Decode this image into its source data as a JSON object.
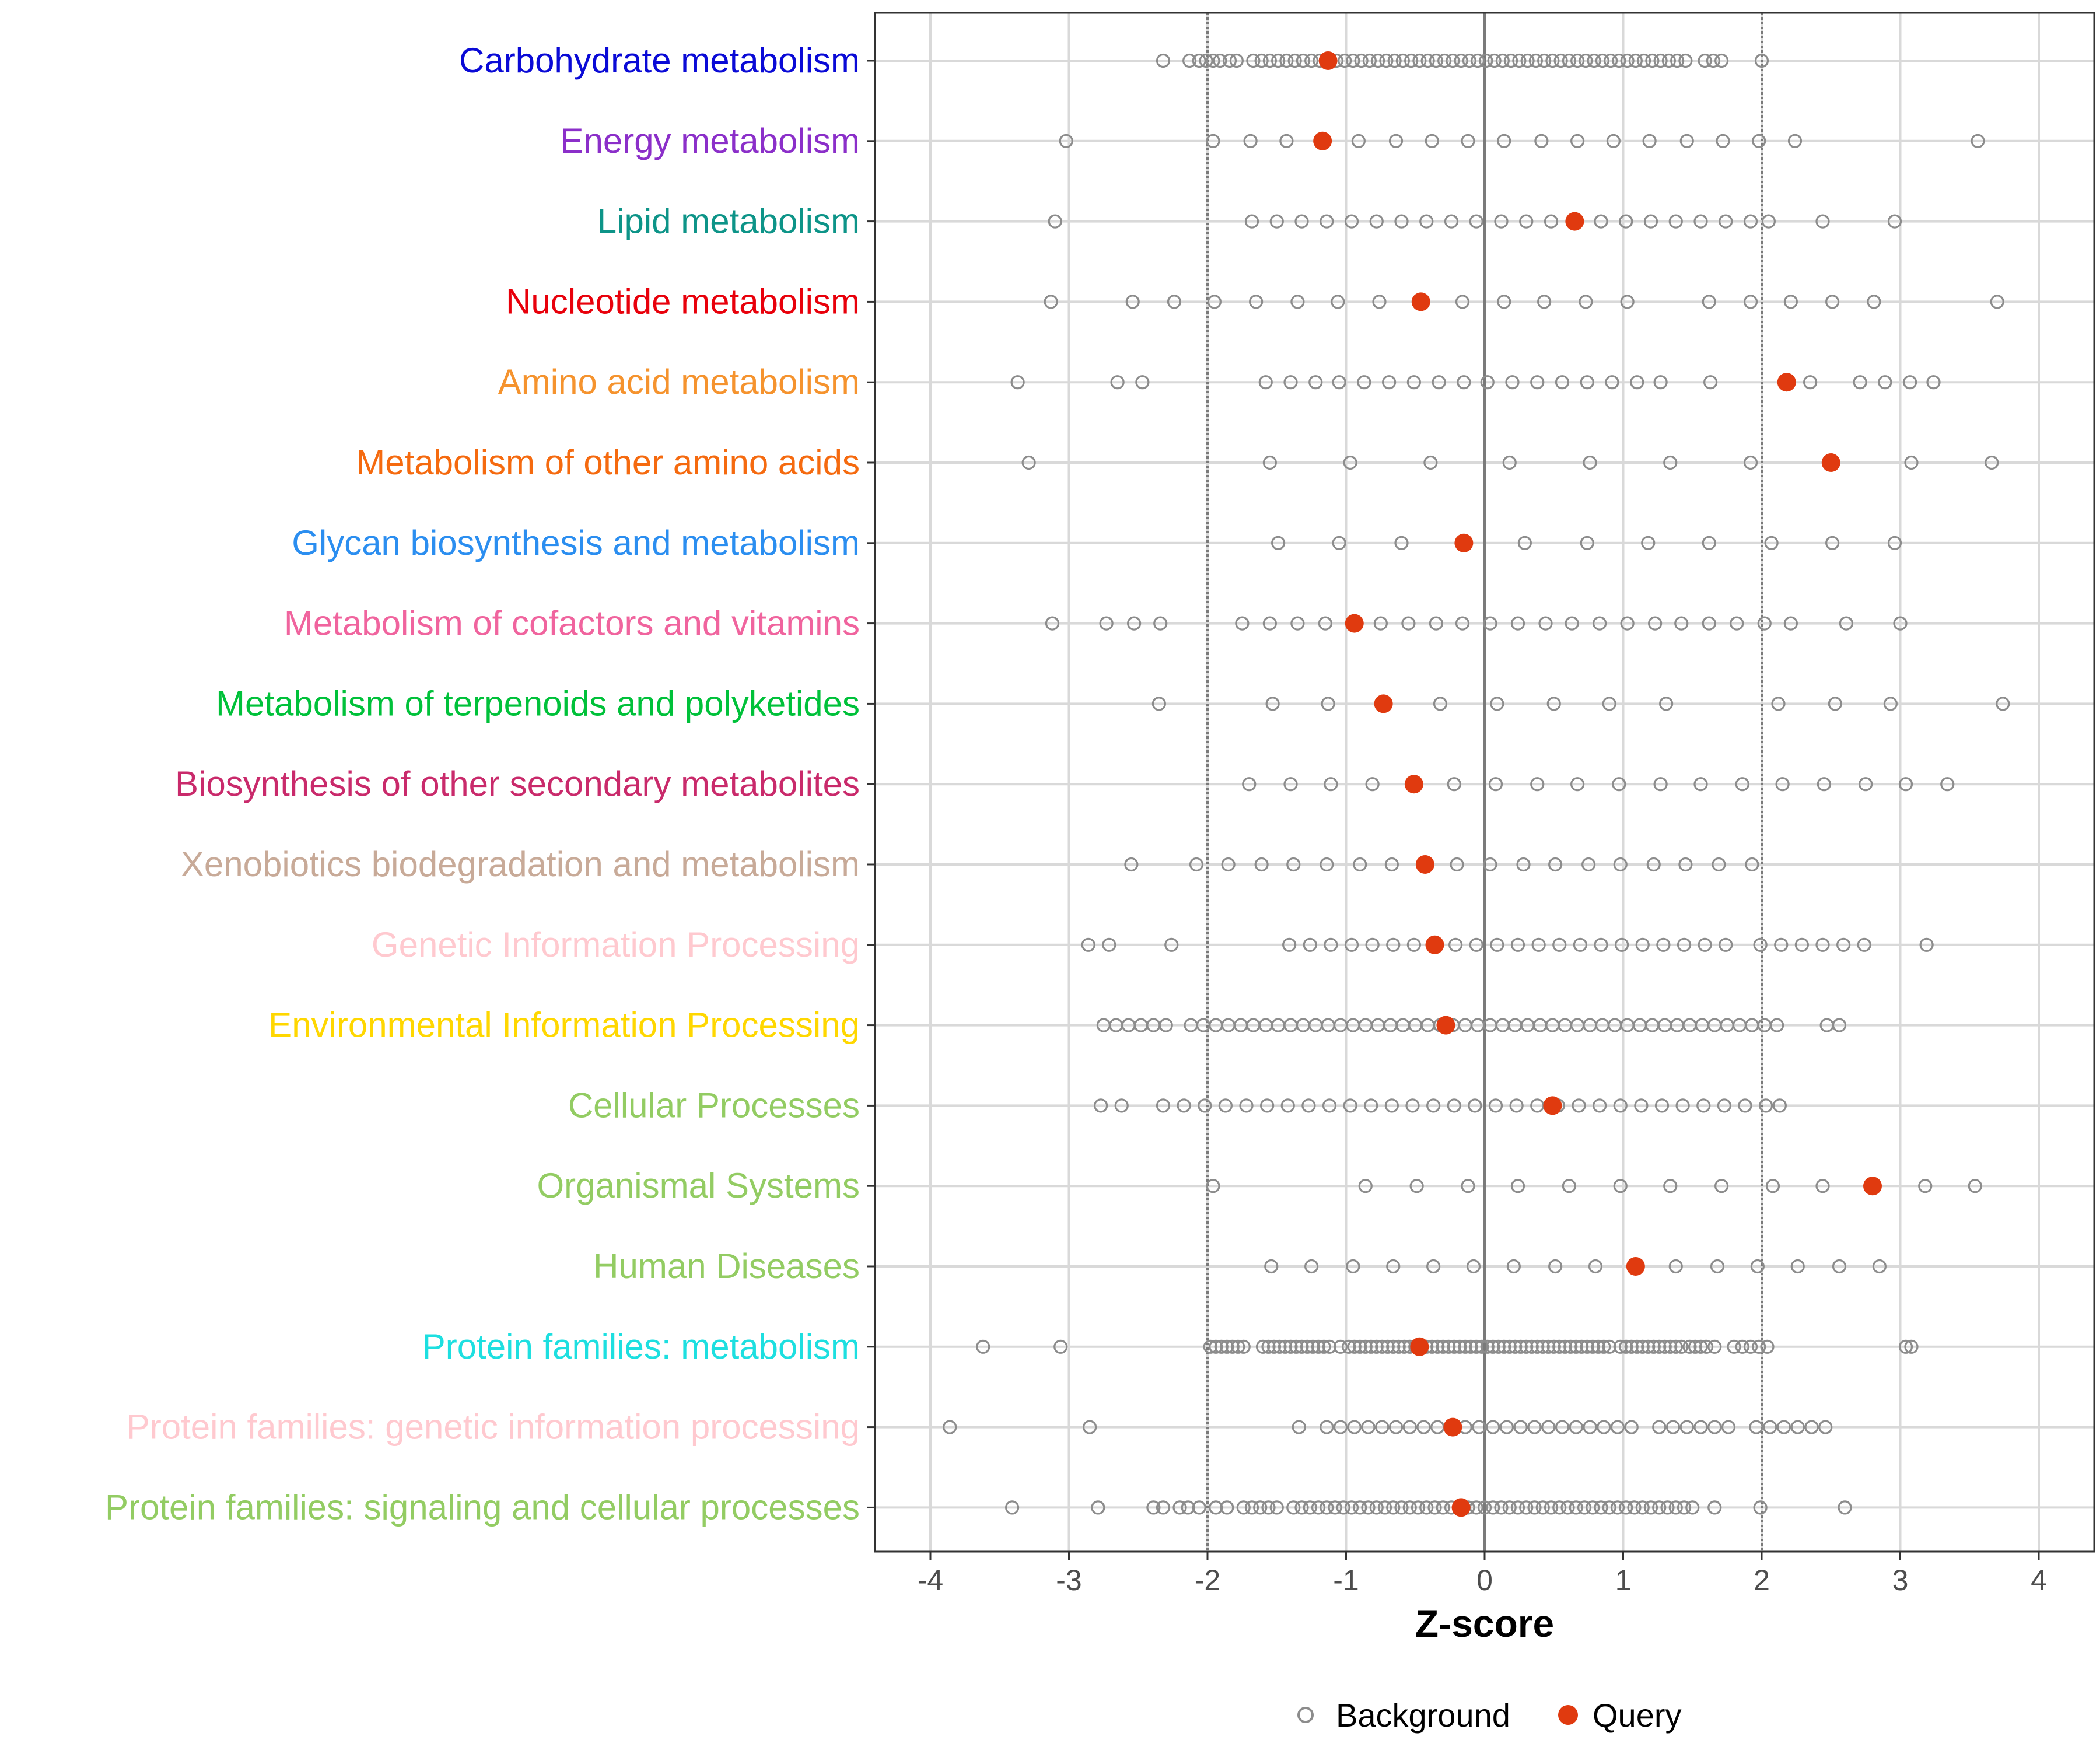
{
  "chart_data": {
    "type": "scatter",
    "title": "",
    "xlabel": "Z-score",
    "ylabel": "",
    "xlim": [
      -4.4,
      4.4
    ],
    "x_ticks": [
      "-4",
      "-3",
      "-2",
      "-1",
      "0",
      "1",
      "2",
      "3",
      "4"
    ],
    "reference_lines": {
      "dashed": [
        -2,
        2
      ],
      "solid": [
        0
      ]
    },
    "legend": {
      "placement": "bottom",
      "items": [
        {
          "name": "Background",
          "marker": "open-circle",
          "color": "#8c8c8c"
        },
        {
          "name": "Query",
          "marker": "filled-circle",
          "color": "#e03a0f"
        }
      ]
    },
    "categories": [
      {
        "name": "Carbohydrate metabolism",
        "color": "#0a0ad6",
        "query": -1.13,
        "background": [
          -2.32,
          -2.13,
          -2.06,
          -2.01,
          -1.96,
          -1.91,
          -1.84,
          -1.79,
          -1.67,
          -1.61,
          -1.55,
          -1.49,
          -1.43,
          -1.37,
          -1.31,
          -1.25,
          -1.19,
          -1.13,
          -1.07,
          -1.01,
          -0.95,
          -0.89,
          -0.83,
          -0.77,
          -0.71,
          -0.65,
          -0.59,
          -0.53,
          -0.47,
          -0.41,
          -0.35,
          -0.29,
          -0.23,
          -0.17,
          -0.11,
          -0.05,
          0.01,
          0.07,
          0.13,
          0.19,
          0.25,
          0.31,
          0.37,
          0.43,
          0.49,
          0.55,
          0.61,
          0.67,
          0.73,
          0.79,
          0.85,
          0.91,
          0.97,
          1.03,
          1.09,
          1.15,
          1.21,
          1.27,
          1.33,
          1.39,
          1.45,
          1.59,
          1.65,
          1.71,
          2.0
        ]
      },
      {
        "name": "Energy metabolism",
        "color": "#8b2fc9",
        "query": -1.17,
        "background": [
          -3.02,
          -1.96,
          -1.69,
          -1.43,
          -1.17,
          -0.91,
          -0.64,
          -0.38,
          -0.12,
          0.14,
          0.41,
          0.67,
          0.93,
          1.19,
          1.46,
          1.72,
          1.98,
          2.24,
          3.56
        ]
      },
      {
        "name": "Lipid metabolism",
        "color": "#0d9488",
        "query": 0.65,
        "background": [
          -3.1,
          -1.68,
          -1.5,
          -1.32,
          -1.14,
          -0.96,
          -0.78,
          -0.6,
          -0.42,
          -0.24,
          -0.06,
          0.12,
          0.3,
          0.48,
          0.66,
          0.84,
          1.02,
          1.2,
          1.38,
          1.56,
          1.74,
          1.92,
          2.05,
          2.44,
          2.96
        ]
      },
      {
        "name": "Nucleotide metabolism",
        "color": "#e8000b",
        "query": -0.46,
        "background": [
          -3.13,
          -2.54,
          -2.24,
          -1.95,
          -1.65,
          -1.35,
          -1.06,
          -0.76,
          -0.46,
          -0.16,
          0.14,
          0.43,
          0.73,
          1.03,
          1.62,
          1.92,
          2.21,
          2.51,
          2.81,
          3.7
        ]
      },
      {
        "name": "Amino acid metabolism",
        "color": "#f5932e",
        "query": 2.18,
        "background": [
          -3.37,
          -2.65,
          -2.47,
          -1.58,
          -1.4,
          -1.22,
          -1.05,
          -0.87,
          -0.69,
          -0.51,
          -0.33,
          -0.15,
          0.02,
          0.2,
          0.38,
          0.56,
          0.74,
          0.92,
          1.1,
          1.27,
          1.63,
          2.18,
          2.35,
          2.71,
          2.89,
          3.07,
          3.24
        ]
      },
      {
        "name": "Metabolism of other amino acids",
        "color": "#f56a0f",
        "query": 2.5,
        "background": [
          -3.29,
          -1.55,
          -0.97,
          -0.39,
          0.18,
          0.76,
          1.34,
          1.92,
          2.5,
          3.08,
          3.66
        ]
      },
      {
        "name": "Glycan biosynthesis and metabolism",
        "color": "#2b8ef0",
        "query": -0.15,
        "background": [
          -1.49,
          -1.05,
          -0.6,
          -0.15,
          0.29,
          0.74,
          1.18,
          1.62,
          2.07,
          2.51,
          2.96
        ]
      },
      {
        "name": "Metabolism of cofactors and vitamins",
        "color": "#f0649e",
        "query": -0.94,
        "background": [
          -3.12,
          -2.73,
          -2.53,
          -2.34,
          -1.75,
          -1.55,
          -1.35,
          -1.15,
          -0.94,
          -0.75,
          -0.55,
          -0.35,
          -0.16,
          0.04,
          0.24,
          0.44,
          0.63,
          0.83,
          1.03,
          1.23,
          1.42,
          1.62,
          1.82,
          2.02,
          2.21,
          2.61,
          3.0
        ]
      },
      {
        "name": "Metabolism of terpenoids and polyketides",
        "color": "#00c13a",
        "query": -0.73,
        "background": [
          -2.35,
          -1.53,
          -1.13,
          -0.73,
          -0.32,
          0.09,
          0.5,
          0.9,
          1.31,
          2.12,
          2.53,
          2.93,
          3.74
        ]
      },
      {
        "name": "Biosynthesis of other secondary metabolites",
        "color": "#c92a6b",
        "query": -0.51,
        "background": [
          -1.7,
          -1.4,
          -1.11,
          -0.81,
          -0.51,
          -0.22,
          0.08,
          0.38,
          0.67,
          0.97,
          1.27,
          1.56,
          1.86,
          2.15,
          2.45,
          2.75,
          3.04,
          3.34
        ]
      },
      {
        "name": "Xenobiotics biodegradation and metabolism",
        "color": "#c8aa98",
        "query": -0.43,
        "background": [
          -2.55,
          -2.08,
          -1.85,
          -1.61,
          -1.38,
          -1.14,
          -0.9,
          -0.67,
          -0.43,
          -0.2,
          0.04,
          0.28,
          0.51,
          0.75,
          0.98,
          1.22,
          1.45,
          1.69,
          1.93
        ]
      },
      {
        "name": "Genetic Information Processing",
        "color": "#ffc9cf",
        "query": -0.36,
        "background": [
          -2.86,
          -2.71,
          -2.26,
          -1.41,
          -1.26,
          -1.11,
          -0.96,
          -0.81,
          -0.66,
          -0.51,
          -0.36,
          -0.21,
          -0.06,
          0.09,
          0.24,
          0.39,
          0.54,
          0.69,
          0.84,
          0.99,
          1.14,
          1.29,
          1.44,
          1.59,
          1.74,
          1.99,
          2.14,
          2.29,
          2.44,
          2.59,
          2.74,
          3.19
        ]
      },
      {
        "name": "Environmental Information Processing",
        "color": "#ffd700",
        "query": -0.28,
        "background": [
          -2.75,
          -2.66,
          -2.57,
          -2.48,
          -2.39,
          -2.3,
          -2.12,
          -2.03,
          -1.94,
          -1.85,
          -1.76,
          -1.67,
          -1.58,
          -1.49,
          -1.4,
          -1.31,
          -1.22,
          -1.13,
          -1.04,
          -0.95,
          -0.86,
          -0.77,
          -0.68,
          -0.59,
          -0.5,
          -0.41,
          -0.32,
          -0.23,
          -0.14,
          -0.05,
          0.04,
          0.13,
          0.22,
          0.31,
          0.4,
          0.49,
          0.58,
          0.67,
          0.76,
          0.85,
          0.94,
          1.03,
          1.12,
          1.21,
          1.3,
          1.39,
          1.48,
          1.57,
          1.66,
          1.75,
          1.84,
          1.93,
          2.02,
          2.11,
          2.47,
          2.56
        ]
      },
      {
        "name": "Cellular Processes",
        "color": "#93cc63",
        "query": 0.49,
        "background": [
          -2.77,
          -2.62,
          -2.32,
          -2.17,
          -2.02,
          -1.87,
          -1.72,
          -1.57,
          -1.42,
          -1.27,
          -1.12,
          -0.97,
          -0.82,
          -0.67,
          -0.52,
          -0.37,
          -0.22,
          -0.07,
          0.08,
          0.23,
          0.38,
          0.53,
          0.68,
          0.83,
          0.98,
          1.13,
          1.28,
          1.43,
          1.58,
          1.73,
          1.88,
          2.03,
          2.13
        ]
      },
      {
        "name": "Organismal Systems",
        "color": "#93cc63",
        "query": 2.8,
        "background": [
          -1.96,
          -0.86,
          -0.49,
          -0.12,
          0.24,
          0.61,
          0.98,
          1.34,
          1.71,
          2.08,
          2.44,
          3.18,
          3.54
        ]
      },
      {
        "name": "Human Diseases",
        "color": "#93cc63",
        "query": 1.09,
        "background": [
          -1.54,
          -1.25,
          -0.95,
          -0.66,
          -0.37,
          -0.08,
          0.21,
          0.51,
          0.8,
          1.09,
          1.38,
          1.68,
          1.97,
          2.26,
          2.56,
          2.85
        ]
      },
      {
        "name": "Protein families: metabolism",
        "color": "#1ddfe0",
        "query": -0.47,
        "background": [
          -3.62,
          -3.06,
          -1.98,
          -1.94,
          -1.9,
          -1.86,
          -1.82,
          -1.78,
          -1.74,
          -1.6,
          -1.56,
          -1.52,
          -1.48,
          -1.44,
          -1.4,
          -1.36,
          -1.32,
          -1.28,
          -1.24,
          -1.2,
          -1.16,
          -1.12,
          -1.04,
          -0.98,
          -0.94,
          -0.9,
          -0.86,
          -0.82,
          -0.78,
          -0.74,
          -0.7,
          -0.66,
          -0.62,
          -0.58,
          -0.54,
          -0.5,
          -0.46,
          -0.42,
          -0.38,
          -0.34,
          -0.3,
          -0.26,
          -0.22,
          -0.18,
          -0.14,
          -0.1,
          -0.06,
          -0.02,
          0.02,
          0.06,
          0.1,
          0.14,
          0.18,
          0.22,
          0.26,
          0.3,
          0.34,
          0.38,
          0.42,
          0.46,
          0.5,
          0.54,
          0.58,
          0.62,
          0.66,
          0.7,
          0.74,
          0.78,
          0.82,
          0.86,
          0.9,
          0.98,
          1.02,
          1.06,
          1.1,
          1.14,
          1.18,
          1.22,
          1.26,
          1.3,
          1.34,
          1.38,
          1.42,
          1.48,
          1.52,
          1.56,
          1.6,
          1.66,
          1.8,
          1.86,
          1.92,
          1.98,
          2.04,
          3.04,
          3.08
        ]
      },
      {
        "name": "Protein families: genetic information processing",
        "color": "#ffc9cf",
        "query": -0.23,
        "background": [
          -3.86,
          -2.85,
          -1.34,
          -1.14,
          -1.04,
          -0.94,
          -0.84,
          -0.74,
          -0.64,
          -0.54,
          -0.44,
          -0.34,
          -0.14,
          -0.04,
          0.06,
          0.16,
          0.26,
          0.36,
          0.46,
          0.56,
          0.66,
          0.76,
          0.86,
          0.96,
          1.06,
          1.26,
          1.36,
          1.46,
          1.56,
          1.66,
          1.76,
          1.96,
          2.06,
          2.16,
          2.26,
          2.36,
          2.46
        ]
      },
      {
        "name": "Protein families: signaling and cellular processes",
        "color": "#93cc63",
        "query": -0.17,
        "background": [
          -3.41,
          -2.79,
          -2.39,
          -2.32,
          -2.2,
          -2.14,
          -2.06,
          -1.94,
          -1.86,
          -1.74,
          -1.68,
          -1.62,
          -1.56,
          -1.5,
          -1.38,
          -1.32,
          -1.26,
          -1.2,
          -1.14,
          -1.08,
          -1.02,
          -0.96,
          -0.9,
          -0.84,
          -0.78,
          -0.72,
          -0.66,
          -0.6,
          -0.54,
          -0.48,
          -0.42,
          -0.36,
          -0.3,
          -0.24,
          -0.18,
          -0.12,
          -0.06,
          0.0,
          0.06,
          0.12,
          0.18,
          0.24,
          0.3,
          0.36,
          0.42,
          0.48,
          0.54,
          0.6,
          0.66,
          0.72,
          0.78,
          0.84,
          0.9,
          0.96,
          1.02,
          1.08,
          1.14,
          1.2,
          1.26,
          1.32,
          1.38,
          1.44,
          1.5,
          1.66,
          1.99,
          2.6
        ]
      }
    ]
  }
}
